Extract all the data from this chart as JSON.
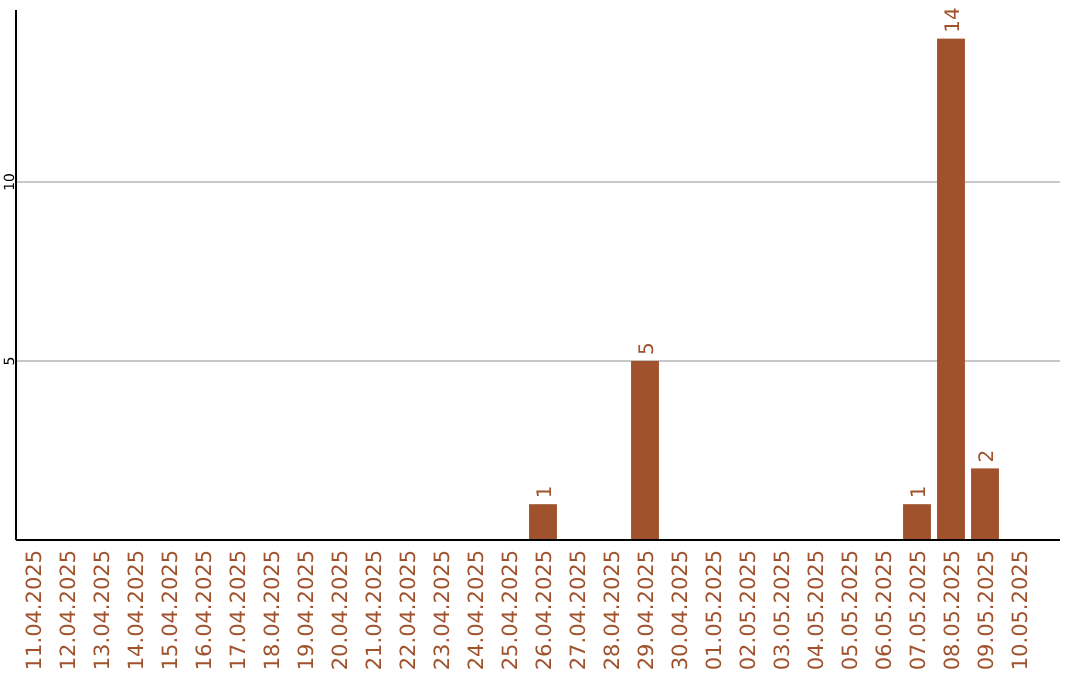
{
  "chart_data": {
    "type": "bar",
    "categories": [
      "11.04.2025",
      "12.04.2025",
      "13.04.2025",
      "14.04.2025",
      "15.04.2025",
      "16.04.2025",
      "17.04.2025",
      "18.04.2025",
      "19.04.2025",
      "20.04.2025",
      "21.04.2025",
      "22.04.2025",
      "23.04.2025",
      "24.04.2025",
      "25.04.2025",
      "26.04.2025",
      "27.04.2025",
      "28.04.2025",
      "29.04.2025",
      "30.04.2025",
      "01.05.2025",
      "02.05.2025",
      "03.05.2025",
      "04.05.2025",
      "05.05.2025",
      "06.05.2025",
      "07.05.2025",
      "08.05.2025",
      "09.05.2025",
      "10.05.2025"
    ],
    "values": [
      0,
      0,
      0,
      0,
      0,
      0,
      0,
      0,
      0,
      0,
      0,
      0,
      0,
      0,
      0,
      1,
      0,
      0,
      5,
      0,
      0,
      0,
      0,
      0,
      0,
      0,
      1,
      14,
      2,
      0
    ],
    "value_labels": [
      null,
      null,
      null,
      null,
      null,
      null,
      null,
      null,
      null,
      null,
      null,
      null,
      null,
      null,
      null,
      "1",
      null,
      null,
      "5",
      null,
      null,
      null,
      null,
      null,
      null,
      null,
      "1",
      "14",
      "2",
      null
    ],
    "color": "#a0522d",
    "ylim": [
      0,
      14.8
    ],
    "yticks": [
      5,
      10
    ],
    "grid": "y"
  }
}
